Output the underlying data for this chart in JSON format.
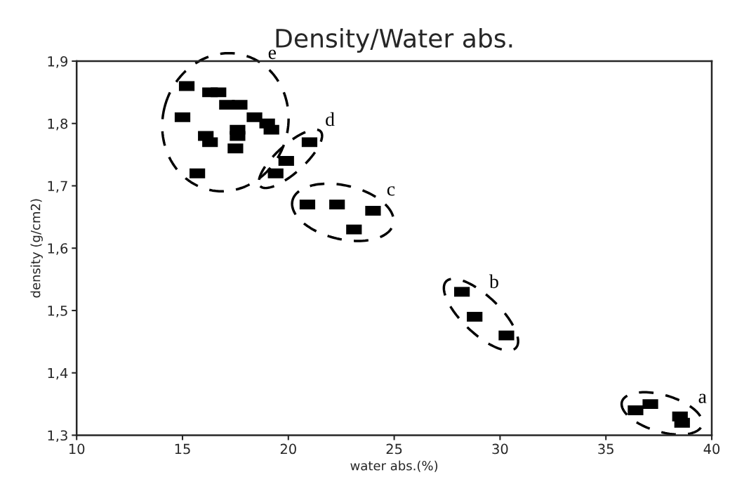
{
  "chart_data": {
    "type": "scatter",
    "title": "Density/Water abs.",
    "xlabel": "water abs.(%)",
    "ylabel": "density (g/cm2)",
    "marker": "square",
    "line_style": "dashed",
    "series": [
      {
        "name": "a",
        "color": "#000000",
        "x": [
          36.4,
          37.1,
          38.5,
          38.6
        ],
        "values": [
          1.34,
          1.35,
          1.33,
          1.32
        ]
      },
      {
        "name": "b",
        "color": "#000000",
        "x": [
          28.2,
          28.8,
          30.3
        ],
        "values": [
          1.53,
          1.49,
          1.46
        ]
      },
      {
        "name": "c",
        "color": "#000000",
        "x": [
          20.9,
          22.3,
          24.0,
          23.1
        ],
        "values": [
          1.67,
          1.67,
          1.66,
          1.63
        ]
      },
      {
        "name": "d",
        "color": "#000000",
        "x": [
          21.0,
          19.9,
          19.4
        ],
        "values": [
          1.77,
          1.74,
          1.72
        ]
      },
      {
        "name": "e",
        "color": "#000000",
        "x": [
          15.2,
          16.3,
          16.7,
          17.1,
          17.7,
          15.0,
          18.4,
          19.0,
          19.2,
          16.1,
          16.3,
          17.6,
          17.6,
          17.5,
          15.7
        ],
        "values": [
          1.86,
          1.85,
          1.85,
          1.83,
          1.83,
          1.81,
          1.81,
          1.8,
          1.79,
          1.78,
          1.77,
          1.79,
          1.78,
          1.76,
          1.72
        ]
      }
    ],
    "xlim": [
      10,
      40
    ],
    "ylim": [
      1.3,
      1.9
    ],
    "xticks": [
      10,
      15,
      20,
      25,
      30,
      35,
      40
    ],
    "yticks": [
      {
        "value": 1.3,
        "label": "1,3"
      },
      {
        "value": 1.4,
        "label": "1,4"
      },
      {
        "value": 1.5,
        "label": "1,5"
      },
      {
        "value": 1.6,
        "label": "1,6"
      },
      {
        "value": 1.7,
        "label": "1,7"
      },
      {
        "value": 1.8,
        "label": "1,8"
      },
      {
        "value": 1.9,
        "label": "1,9"
      }
    ],
    "grid": false,
    "legend": false
  }
}
